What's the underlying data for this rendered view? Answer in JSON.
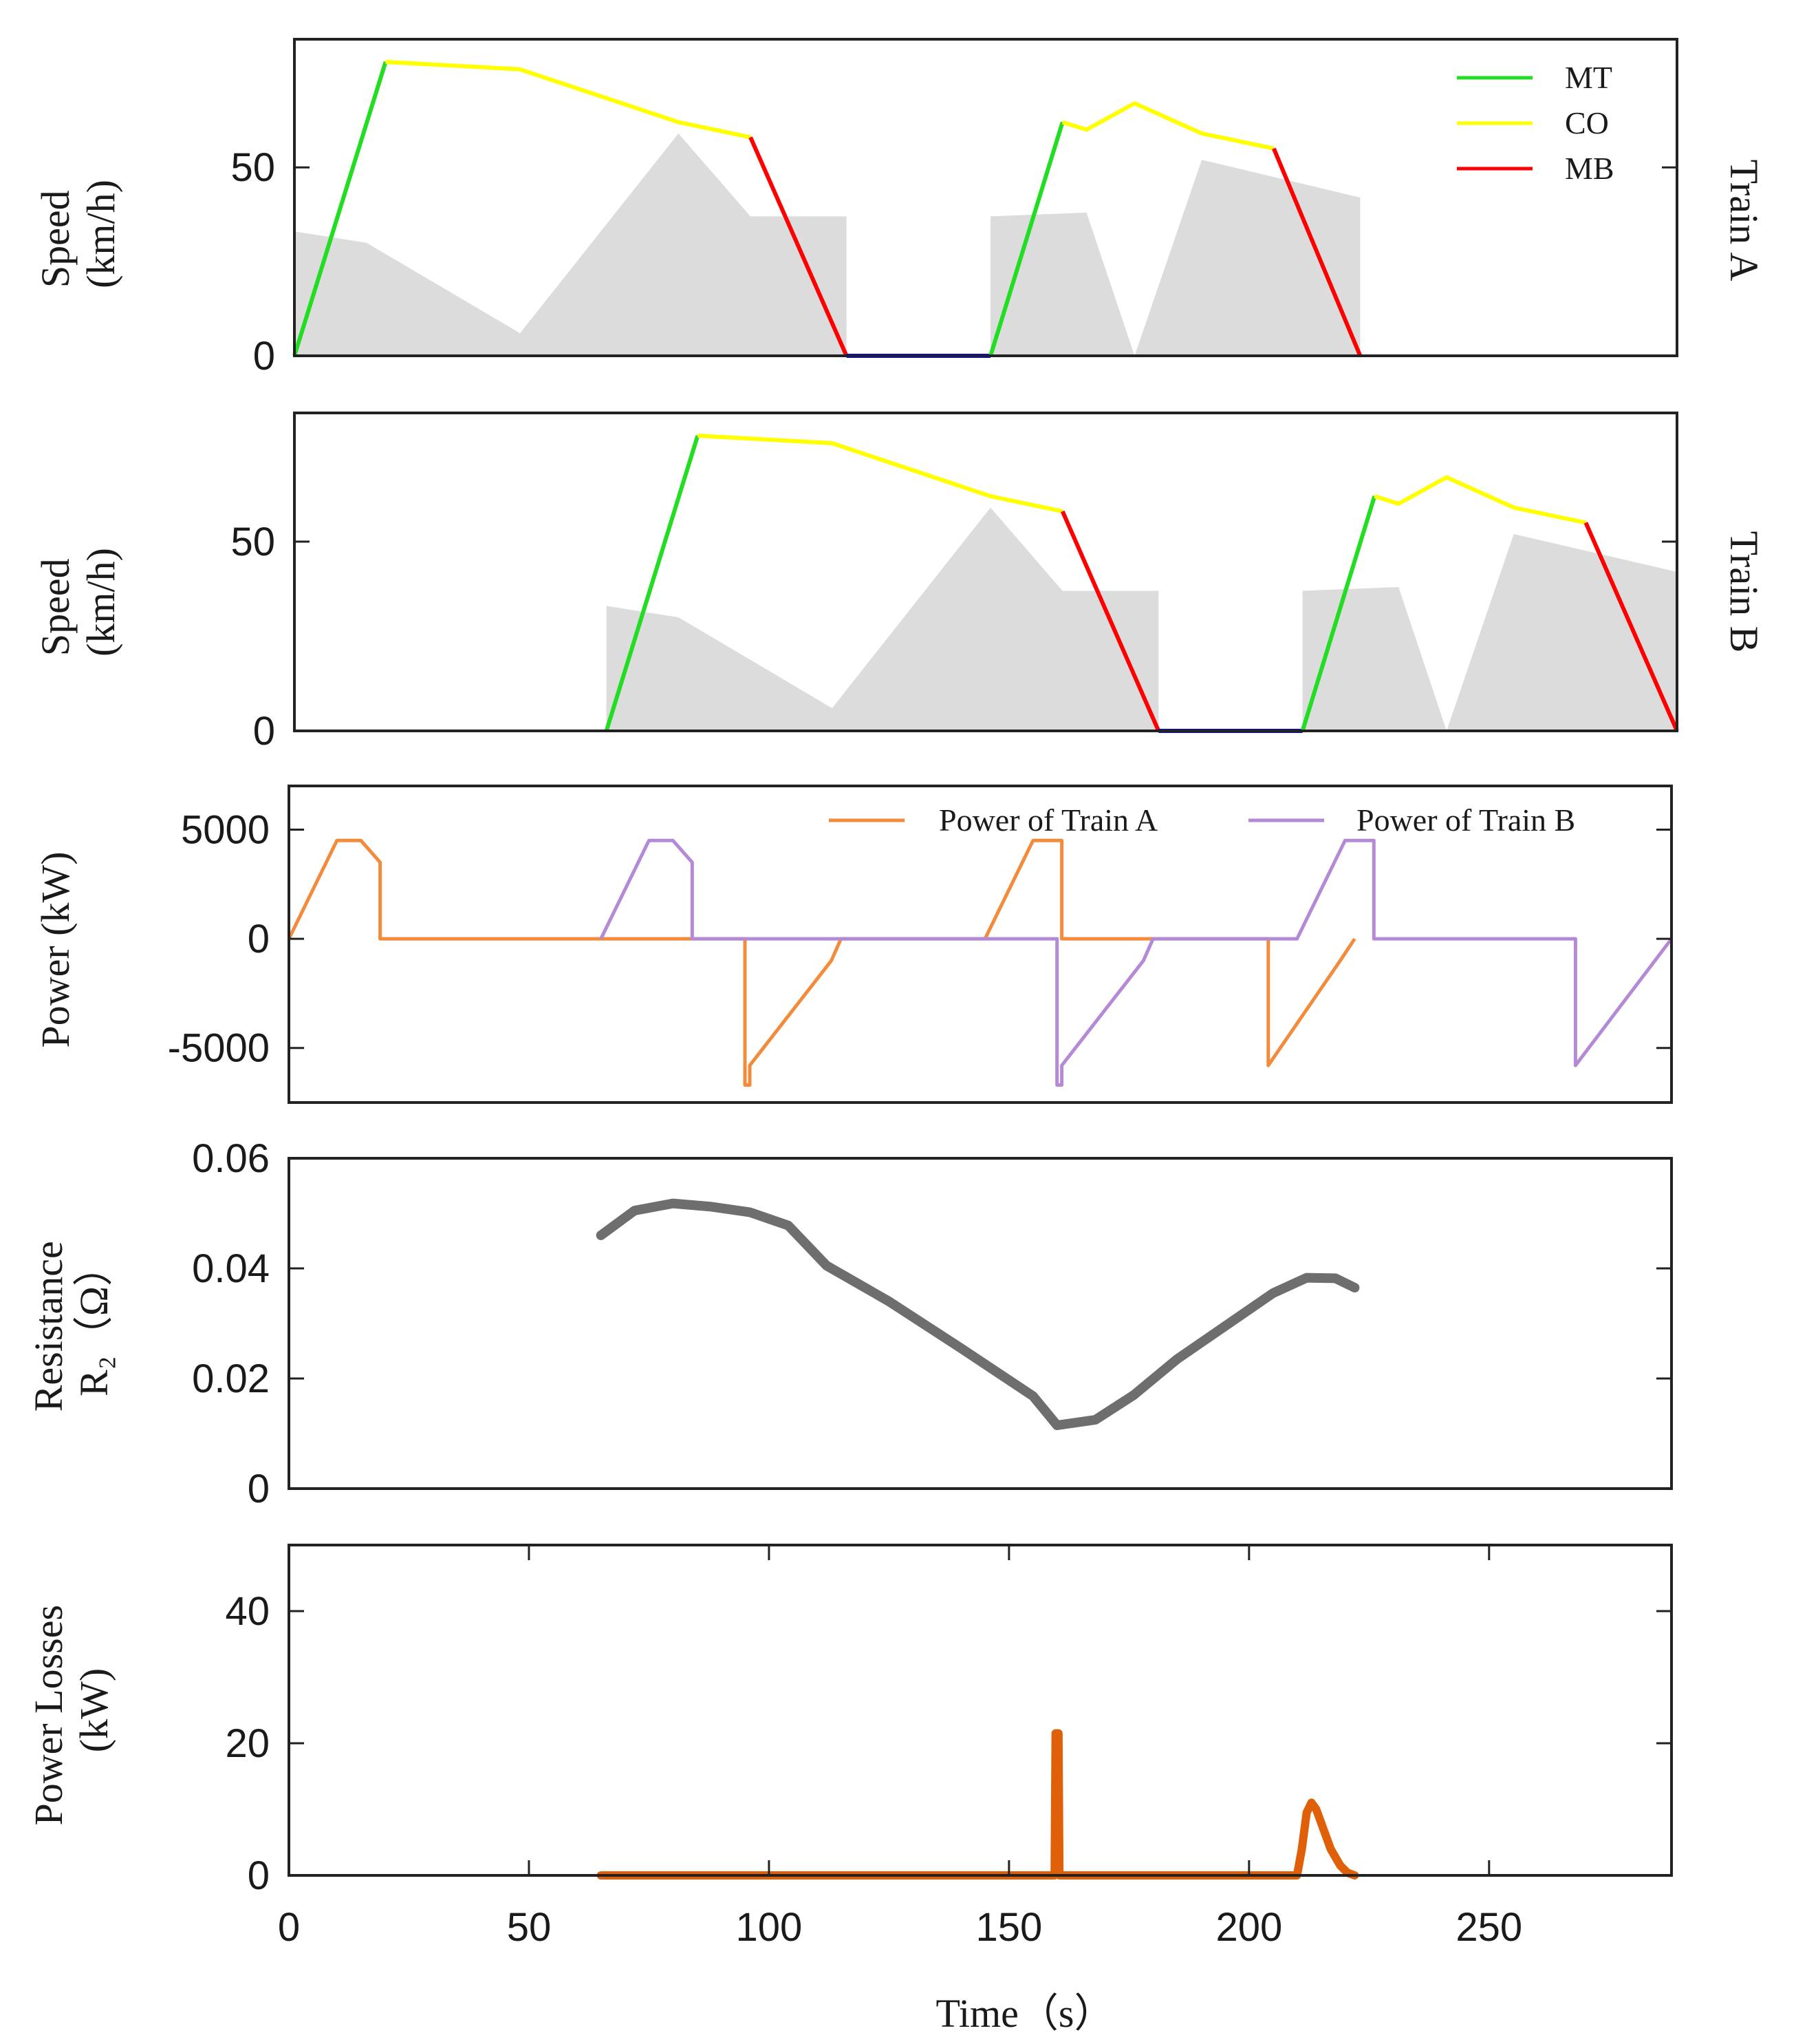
{
  "colors": {
    "mt": "#22dd22",
    "co": "#ffff00",
    "mb": "#ff0000",
    "dwell": "#0000ff",
    "limit_fill": "#dcdcdc",
    "power_a": "#f28b3c",
    "power_b": "#b48ad6",
    "resistance": "#6e6e6e",
    "losses": "#e0600a"
  },
  "chart_data": [
    {
      "type": "line",
      "right_label": "Train A",
      "ylabel": [
        "Speed",
        "(km/h)"
      ],
      "xlim": [
        0,
        288
      ],
      "ylim": [
        0,
        84
      ],
      "yticks": [
        {
          "value": 0,
          "label": "0"
        },
        {
          "value": 50,
          "label": "50"
        }
      ],
      "legend": {
        "placement": "top-right",
        "entries": [
          {
            "label": "MT",
            "color": "#22dd22"
          },
          {
            "label": "CO",
            "color": "#ffff00"
          },
          {
            "label": "MB",
            "color": "#ff0000"
          }
        ]
      },
      "speed_limit_area": [
        {
          "x": [
            0,
            15,
            47,
            80,
            95,
            115
          ],
          "y": [
            33,
            30,
            6,
            59,
            37,
            37
          ]
        },
        {
          "x": [
            145,
            165,
            175,
            189,
            222
          ],
          "y": [
            37,
            38,
            0,
            52,
            42
          ]
        }
      ],
      "segments": [
        {
          "mode": "MT",
          "x": [
            0,
            19
          ],
          "y": [
            0,
            78
          ]
        },
        {
          "mode": "CO",
          "x": [
            19,
            47,
            80,
            95
          ],
          "y": [
            78,
            76,
            62,
            58
          ]
        },
        {
          "mode": "MB",
          "x": [
            95,
            115
          ],
          "y": [
            58,
            0
          ]
        },
        {
          "mode": "dwell",
          "x": [
            115,
            145
          ],
          "y": [
            0,
            0
          ]
        },
        {
          "mode": "MT",
          "x": [
            145,
            160
          ],
          "y": [
            0,
            62
          ]
        },
        {
          "mode": "CO",
          "x": [
            160,
            165,
            175,
            189,
            204
          ],
          "y": [
            62,
            60,
            67,
            59,
            55
          ]
        },
        {
          "mode": "MB",
          "x": [
            204,
            222
          ],
          "y": [
            55,
            0
          ]
        }
      ]
    },
    {
      "type": "line",
      "right_label": "Train B",
      "ylabel": [
        "Speed",
        "(km/h)"
      ],
      "xlim": [
        0,
        288
      ],
      "ylim": [
        0,
        84
      ],
      "yticks": [
        {
          "value": 0,
          "label": "0"
        },
        {
          "value": 50,
          "label": "50"
        }
      ],
      "speed_limit_area": [
        {
          "x": [
            65,
            80,
            112,
            145,
            160,
            180
          ],
          "y": [
            33,
            30,
            6,
            59,
            37,
            37
          ]
        },
        {
          "x": [
            210,
            230,
            240,
            254,
            288
          ],
          "y": [
            37,
            38,
            0,
            52,
            42
          ]
        }
      ],
      "segments": [
        {
          "mode": "MT",
          "x": [
            65,
            84
          ],
          "y": [
            0,
            78
          ]
        },
        {
          "mode": "CO",
          "x": [
            84,
            112,
            145,
            160
          ],
          "y": [
            78,
            76,
            62,
            58
          ]
        },
        {
          "mode": "MB",
          "x": [
            160,
            180
          ],
          "y": [
            58,
            0
          ]
        },
        {
          "mode": "dwell",
          "x": [
            180,
            210
          ],
          "y": [
            0,
            0
          ]
        },
        {
          "mode": "MT",
          "x": [
            210,
            225
          ],
          "y": [
            0,
            62
          ]
        },
        {
          "mode": "CO",
          "x": [
            225,
            230,
            240,
            254,
            269
          ],
          "y": [
            62,
            60,
            67,
            59,
            55
          ]
        },
        {
          "mode": "MB",
          "x": [
            269,
            288
          ],
          "y": [
            55,
            0
          ]
        }
      ]
    },
    {
      "type": "line",
      "ylabel": [
        "Power (kW)"
      ],
      "xlim": [
        0,
        288
      ],
      "ylim": [
        -7500,
        7000
      ],
      "yticks": [
        {
          "value": 5000,
          "label": "5000"
        },
        {
          "value": 0,
          "label": "0"
        },
        {
          "value": -5000,
          "label": "-5000"
        }
      ],
      "legend": {
        "placement": "top",
        "entries": []
      },
      "series": [
        {
          "name": "Power of Train A",
          "color": "#f28b3c",
          "x": [
            0,
            10,
            15,
            19,
            19,
            95,
            95,
            96,
            96,
            113,
            115,
            145,
            155,
            161,
            161,
            204,
            204,
            219,
            222
          ],
          "y": [
            0,
            4500,
            4500,
            3500,
            0,
            0,
            -6700,
            -6700,
            -5800,
            -1000,
            0,
            0,
            4500,
            4500,
            0,
            0,
            -5800,
            -1000,
            0
          ]
        },
        {
          "name": "Power of Train B",
          "color": "#b48ad6",
          "x": [
            65,
            75,
            80,
            84,
            84,
            160,
            160,
            161,
            161,
            178,
            180,
            210,
            220,
            226,
            226,
            268,
            268,
            288
          ],
          "y": [
            0,
            4500,
            4500,
            3500,
            0,
            0,
            -6700,
            -6700,
            -5800,
            -1000,
            0,
            0,
            4500,
            4500,
            0,
            0,
            -5800,
            0
          ]
        }
      ]
    },
    {
      "type": "line",
      "ylabel": [
        "Resistance",
        "R₂（Ω）"
      ],
      "xlim": [
        0,
        288
      ],
      "ylim": [
        0,
        0.06
      ],
      "yticks": [
        {
          "value": 0.06,
          "label": "0.06"
        },
        {
          "value": 0.04,
          "label": "0.04"
        },
        {
          "value": 0.02,
          "label": "0.02"
        },
        {
          "value": 0,
          "label": "0"
        }
      ],
      "series": [
        {
          "color": "#6e6e6e",
          "x": [
            65,
            72,
            80,
            88,
            96,
            104,
            112,
            125,
            140,
            155,
            160,
            168,
            176,
            185,
            195,
            205,
            212,
            218,
            222
          ],
          "y": [
            0.046,
            0.0505,
            0.0518,
            0.0512,
            0.0502,
            0.0478,
            0.0405,
            0.034,
            0.0255,
            0.0168,
            0.0115,
            0.0125,
            0.017,
            0.0235,
            0.0295,
            0.0355,
            0.0383,
            0.0382,
            0.0365
          ]
        }
      ]
    },
    {
      "type": "line",
      "ylabel": [
        "Power  Losses",
        "(kW)"
      ],
      "xlabel": "Time（s）",
      "xlim": [
        0,
        288
      ],
      "ylim": [
        0,
        50
      ],
      "xticks": [
        {
          "value": 0,
          "label": "0"
        },
        {
          "value": 50,
          "label": "50"
        },
        {
          "value": 100,
          "label": "100"
        },
        {
          "value": 150,
          "label": "150"
        },
        {
          "value": 200,
          "label": "200"
        },
        {
          "value": 250,
          "label": "250"
        }
      ],
      "yticks": [
        {
          "value": 40,
          "label": "40"
        },
        {
          "value": 20,
          "label": "20"
        },
        {
          "value": 0,
          "label": "0"
        }
      ],
      "series": [
        {
          "color": "#e0600a",
          "x": [
            65,
            159.5,
            159.7,
            160.3,
            160.5,
            210,
            211,
            212,
            213,
            214,
            215,
            217,
            219,
            220.5,
            222
          ],
          "y": [
            0,
            0,
            21.5,
            21.5,
            0,
            0,
            4,
            9.5,
            11,
            10,
            8,
            4,
            1.5,
            0.4,
            0
          ]
        }
      ]
    }
  ],
  "legend_power": {
    "train_a": "Power of Train A",
    "train_b": "Power of Train B"
  }
}
